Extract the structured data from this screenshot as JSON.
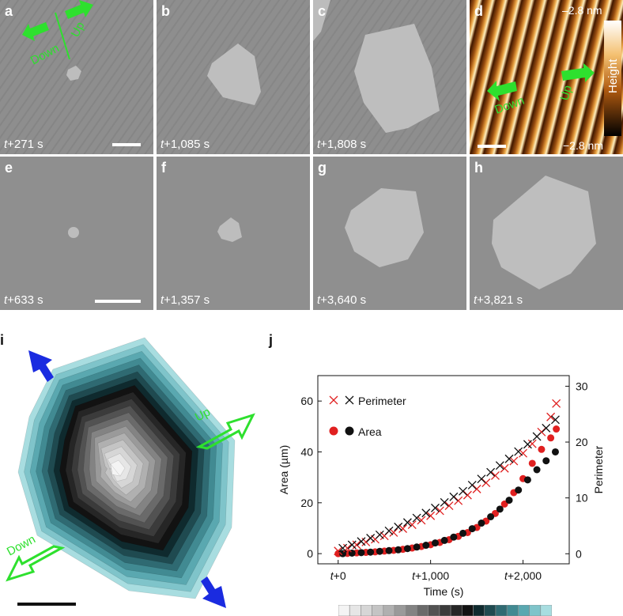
{
  "panels": [
    {
      "label": "a",
      "time_prefix": "t",
      "time_value": "+271 s"
    },
    {
      "label": "b",
      "time_prefix": "t",
      "time_value": "+1,085 s"
    },
    {
      "label": "c",
      "time_prefix": "t",
      "time_value": "+1,808 s"
    },
    {
      "label": "d"
    },
    {
      "label": "e",
      "time_prefix": "t",
      "time_value": "+633 s"
    },
    {
      "label": "f",
      "time_prefix": "t",
      "time_value": "+1,357 s"
    },
    {
      "label": "g",
      "time_prefix": "t",
      "time_value": "+3,640 s"
    },
    {
      "label": "h",
      "time_prefix": "t",
      "time_value": "+3,821 s"
    }
  ],
  "panel_a": {
    "down": "Down",
    "up": "Up"
  },
  "panel_d": {
    "down": "Down",
    "up": "Up",
    "top_value": "2.8 nm",
    "bottom_value": "−2.8 nm",
    "colorbar_label": "Height"
  },
  "panel_i": {
    "label": "i",
    "up": "Up",
    "down": "Down"
  },
  "colors": {
    "arrow_green": "#2ee02e",
    "arrow_blue": "#1a2be0",
    "red": "#e02020",
    "black": "#111111"
  },
  "chart_data": {
    "type": "scatter",
    "label": "j",
    "xlabel": "Time (s)",
    "ylabel": "Area (µm)",
    "y2label": "Perimeter",
    "xticks": [
      "t+0",
      "t+1,000",
      "t+2,000"
    ],
    "xtick_values": [
      0,
      1000,
      2000
    ],
    "yticks": [
      0,
      20,
      40,
      60
    ],
    "y2ticks": [
      0,
      10,
      20,
      30
    ],
    "xlim": [
      -220,
      2500
    ],
    "ylim": [
      -4,
      70
    ],
    "y2lim": [
      -1.8,
      31.9
    ],
    "legend": [
      {
        "name": "Perimeter",
        "marker": "x"
      },
      {
        "name": "Area",
        "marker": "circle"
      }
    ],
    "series": [
      {
        "name": "Area",
        "color": "red",
        "marker": "circle",
        "axis": "left",
        "x": [
          0,
          100,
          200,
          300,
          400,
          500,
          600,
          700,
          800,
          900,
          1000,
          1100,
          1200,
          1300,
          1400,
          1500,
          1600,
          1700,
          1800,
          1900,
          2000,
          2100,
          2200,
          2300,
          2360
        ],
        "y": [
          0,
          0.1,
          0.3,
          0.5,
          0.7,
          1.0,
          1.3,
          1.7,
          2.2,
          2.8,
          3.5,
          4.4,
          5.5,
          6.8,
          8.3,
          10.3,
          12.8,
          15.8,
          19.5,
          24,
          29.5,
          35.5,
          41,
          45.5,
          49
        ]
      },
      {
        "name": "Area",
        "color": "black",
        "marker": "circle",
        "axis": "left",
        "x": [
          50,
          150,
          250,
          350,
          450,
          550,
          650,
          750,
          850,
          950,
          1050,
          1150,
          1250,
          1350,
          1450,
          1550,
          1650,
          1750,
          1850,
          1950,
          2050,
          2150,
          2250,
          2350
        ],
        "y": [
          0,
          0.2,
          0.4,
          0.6,
          0.9,
          1.2,
          1.5,
          2.0,
          2.6,
          3.3,
          4.2,
          5.2,
          6.5,
          8.0,
          9.8,
          12.0,
          14.5,
          17.5,
          21.0,
          25.0,
          29.0,
          33.0,
          36.5,
          40.0
        ]
      },
      {
        "name": "Perimeter",
        "color": "red",
        "marker": "x",
        "axis": "right",
        "x": [
          0,
          100,
          200,
          300,
          400,
          500,
          600,
          700,
          800,
          900,
          1000,
          1100,
          1200,
          1300,
          1400,
          1500,
          1600,
          1700,
          1800,
          1900,
          2000,
          2100,
          2200,
          2300,
          2360
        ],
        "y": [
          0.5,
          1.0,
          1.6,
          2.1,
          2.6,
          3.2,
          3.8,
          4.5,
          5.2,
          6.0,
          6.8,
          7.7,
          8.6,
          9.5,
          10.5,
          11.6,
          12.7,
          14.0,
          15.3,
          16.6,
          18.0,
          19.7,
          21.8,
          24.5,
          26.9
        ]
      },
      {
        "name": "Perimeter",
        "color": "black",
        "marker": "x",
        "axis": "right",
        "x": [
          50,
          150,
          250,
          350,
          450,
          550,
          650,
          750,
          850,
          950,
          1050,
          1150,
          1250,
          1350,
          1450,
          1550,
          1650,
          1750,
          1850,
          1950,
          2050,
          2150,
          2250,
          2350
        ],
        "y": [
          1.0,
          1.6,
          2.2,
          2.8,
          3.4,
          4.1,
          4.8,
          5.6,
          6.4,
          7.3,
          8.2,
          9.2,
          10.2,
          11.2,
          12.3,
          13.4,
          14.6,
          15.8,
          17.0,
          18.3,
          19.6,
          21.0,
          22.5,
          24.0
        ]
      }
    ]
  },
  "colorbar_strip": [
    "#f4f4f4",
    "#e6e6e6",
    "#d6d6d6",
    "#c4c4c4",
    "#b0b0b0",
    "#9a9a9a",
    "#838383",
    "#6a6a6a",
    "#525252",
    "#3b3b3b",
    "#262626",
    "#121212",
    "#0f2a2e",
    "#1f4a50",
    "#2f6a72",
    "#418a92",
    "#5aa8b0",
    "#7fc4ca",
    "#a8dde0"
  ]
}
